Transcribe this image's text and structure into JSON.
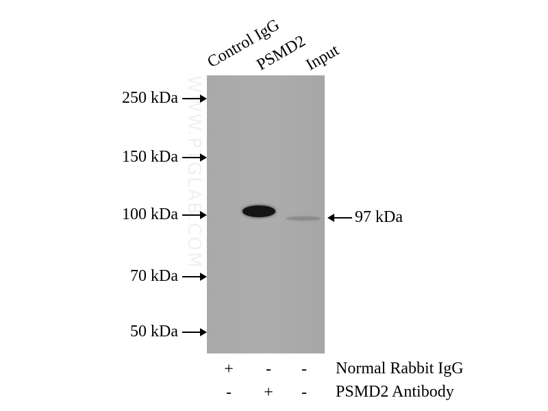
{
  "lanes": [
    "Control IgG",
    "PSMD2",
    "Input"
  ],
  "markers": [
    "250 kDa",
    "150 kDa",
    "100 kDa",
    "70 kDa",
    "50 kDa"
  ],
  "target_label": "97 kDa",
  "watermark": "WWW.PTGLAB.COM",
  "conditions": [
    {
      "label": "Normal Rabbit IgG",
      "signs": [
        "+",
        "-",
        "-"
      ]
    },
    {
      "label": "PSMD2 Antibody",
      "signs": [
        "-",
        "+",
        "-"
      ]
    }
  ]
}
